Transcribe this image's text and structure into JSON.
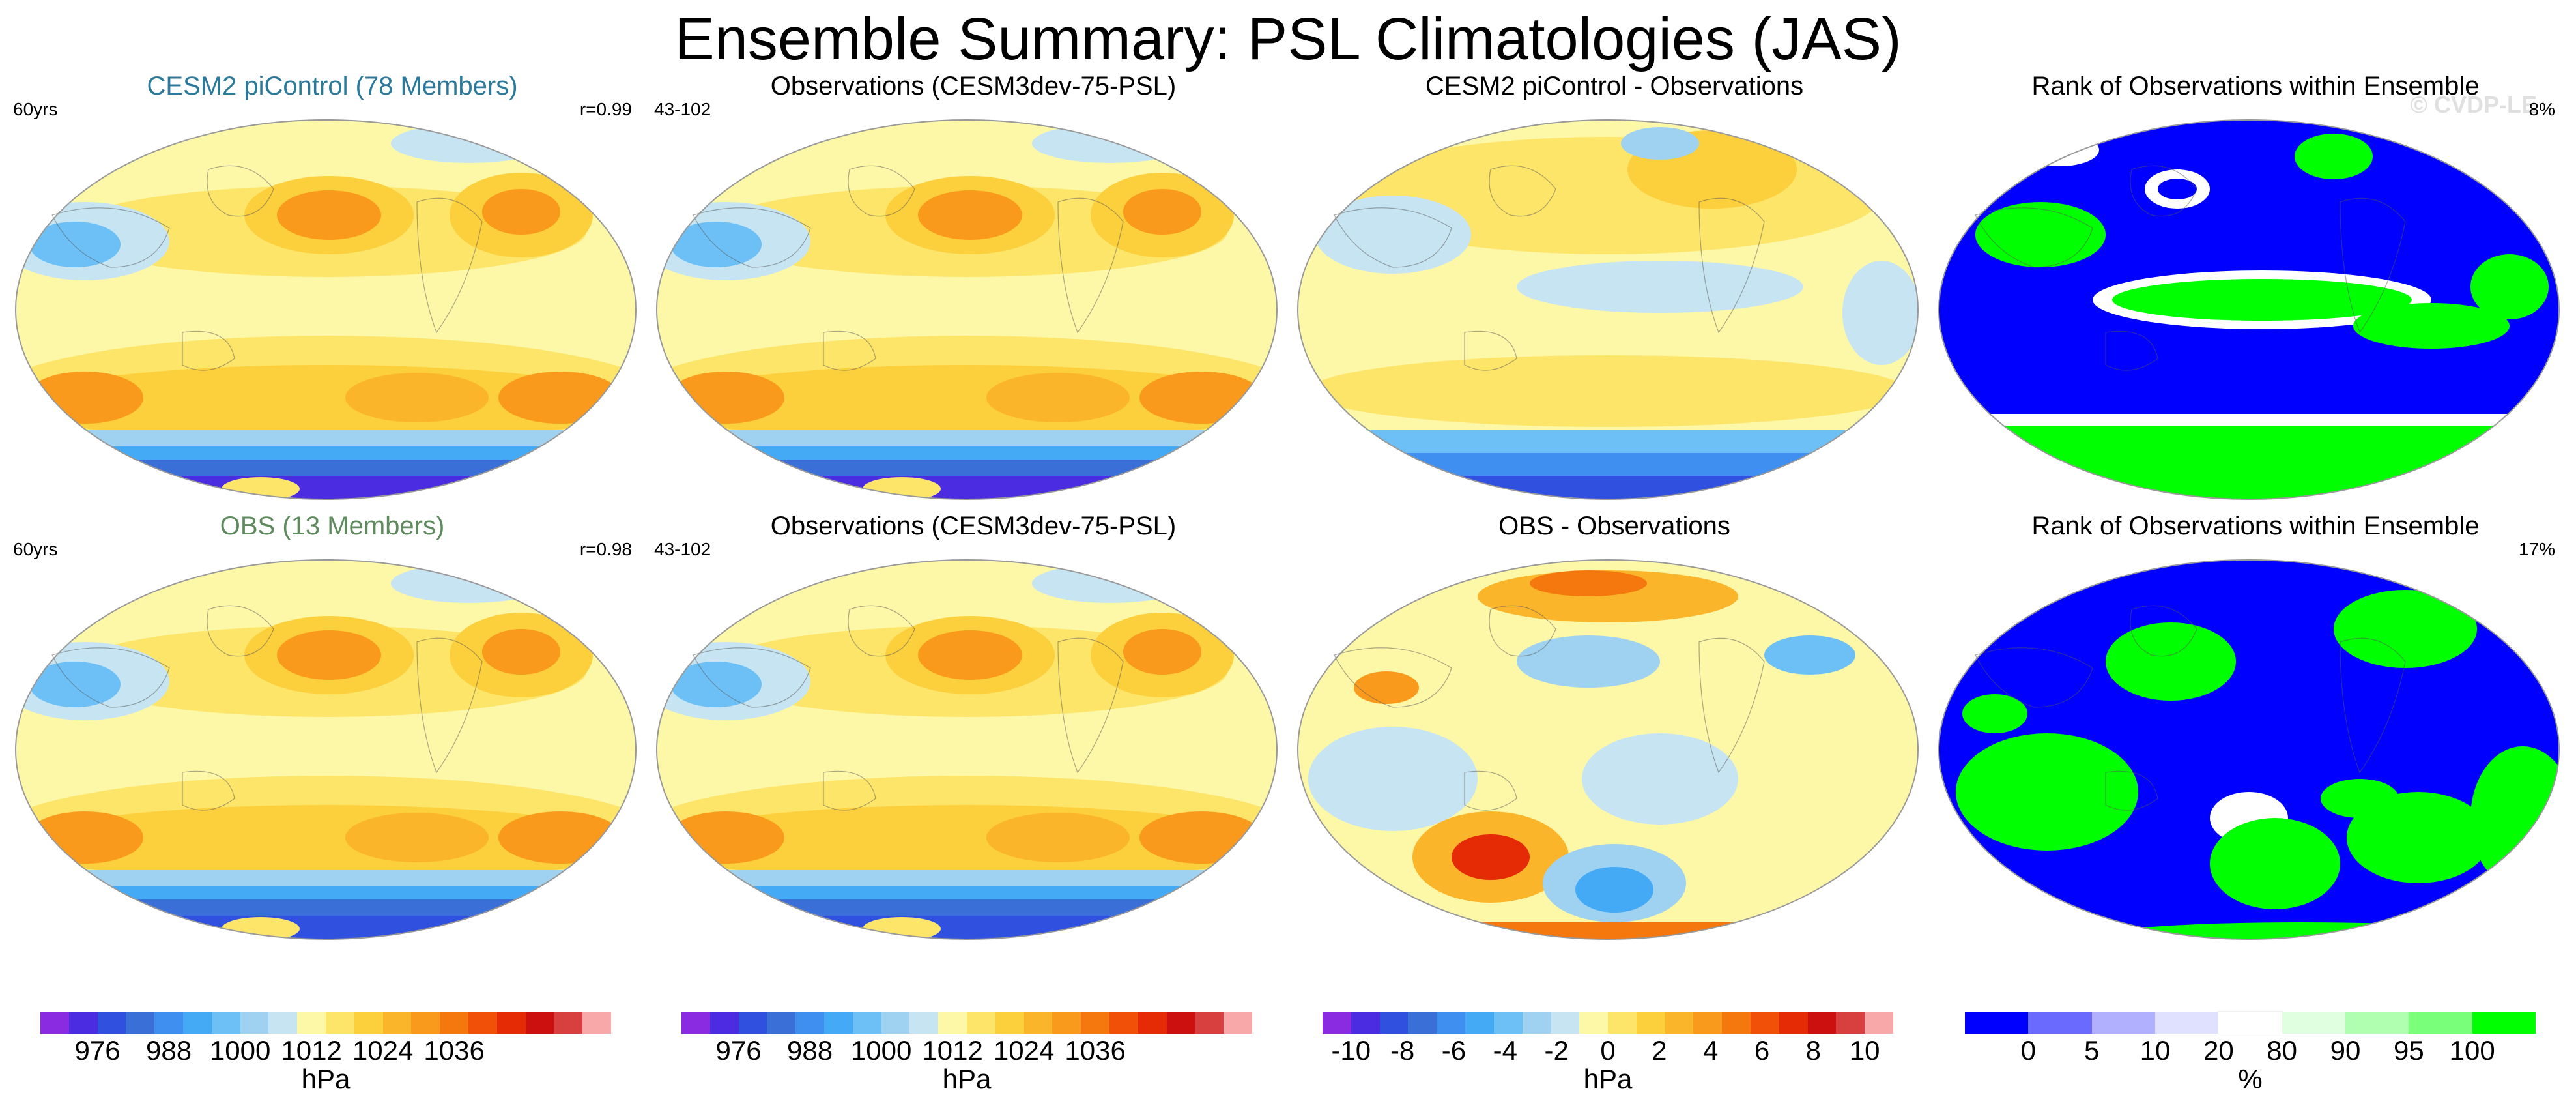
{
  "title": "Ensemble Summary: PSL Climatologies (JAS)",
  "watermark": "© CVDP-LE",
  "panels": [
    {
      "title": "CESM2 piControl (78 Members)",
      "title_color": "#2b7a9c",
      "left": "60yrs",
      "right": "r=0.99",
      "type": "clim"
    },
    {
      "title": "Observations (CESM3dev-75-PSL)",
      "title_color": "#000000",
      "left": "43-102",
      "right": "",
      "type": "clim"
    },
    {
      "title": "CESM2 piControl - Observations",
      "title_color": "#000000",
      "left": "",
      "right": "",
      "type": "diff"
    },
    {
      "title": "Rank of Observations within Ensemble",
      "title_color": "#000000",
      "left": "",
      "right": "8%",
      "type": "rank"
    },
    {
      "title": "OBS (13 Members)",
      "title_color": "#5e8a5e",
      "left": "60yrs",
      "right": "r=0.98",
      "type": "clim"
    },
    {
      "title": "Observations (CESM3dev-75-PSL)",
      "title_color": "#000000",
      "left": "43-102",
      "right": "",
      "type": "clim"
    },
    {
      "title": "OBS - Observations",
      "title_color": "#000000",
      "left": "",
      "right": "",
      "type": "diff2"
    },
    {
      "title": "Rank of Observations within Ensemble",
      "title_color": "#000000",
      "left": "",
      "right": "17%",
      "type": "rank2"
    }
  ],
  "colorbars": [
    {
      "unit": "hPa",
      "labels": [
        "976",
        "988",
        "1000",
        "1012",
        "1024",
        "1036"
      ],
      "colors": [
        "#8a2be2",
        "#4b2ce0",
        "#3050e0",
        "#3a6fd8",
        "#3f8ff0",
        "#45aaf5",
        "#6cc0f5",
        "#9ed2f0",
        "#c7e4f2",
        "#fdf7a8",
        "#fde56a",
        "#fccf3c",
        "#fbb52a",
        "#f99a1c",
        "#f5780f",
        "#f05008",
        "#e52a06",
        "#cc1010",
        "#d84040",
        "#f8a8a8"
      ],
      "label_idx": [
        1,
        3,
        5,
        7,
        9,
        11
      ]
    },
    {
      "unit": "hPa",
      "labels": [
        "976",
        "988",
        "1000",
        "1012",
        "1024",
        "1036"
      ],
      "colors": [
        "#8a2be2",
        "#4b2ce0",
        "#3050e0",
        "#3a6fd8",
        "#3f8ff0",
        "#45aaf5",
        "#6cc0f5",
        "#9ed2f0",
        "#c7e4f2",
        "#fdf7a8",
        "#fde56a",
        "#fccf3c",
        "#fbb52a",
        "#f99a1c",
        "#f5780f",
        "#f05008",
        "#e52a06",
        "#cc1010",
        "#d84040",
        "#f8a8a8"
      ],
      "label_idx": [
        1,
        3,
        5,
        7,
        9,
        11
      ]
    },
    {
      "unit": "hPa",
      "labels": [
        "-10",
        "-8",
        "-6",
        "-4",
        "-2",
        "0",
        "2",
        "4",
        "6",
        "8",
        "10"
      ],
      "colors": [
        "#8a2be2",
        "#4b2ce0",
        "#3050e0",
        "#3a6fd8",
        "#3f8ff0",
        "#45aaf5",
        "#6cc0f5",
        "#9ed2f0",
        "#c7e4f2",
        "#fdf7a8",
        "#fde56a",
        "#fccf3c",
        "#fbb52a",
        "#f99a1c",
        "#f5780f",
        "#f05008",
        "#e52a06",
        "#cc1010",
        "#d84040",
        "#f8a8a8"
      ],
      "label_idx": [
        1,
        3,
        5,
        7,
        9,
        11,
        13,
        15,
        17,
        19,
        21
      ]
    },
    {
      "unit": "%",
      "labels": [
        "0",
        "5",
        "10",
        "20",
        "80",
        "90",
        "95",
        "100"
      ],
      "colors": [
        "#0000ff",
        "#6a6aff",
        "#b0b0ff",
        "#e0e0ff",
        "#ffffff",
        "#e0ffe0",
        "#b0ffb0",
        "#7aff7a",
        "#00ff00"
      ],
      "label_idx": [
        1,
        2,
        3,
        4,
        5,
        6,
        7,
        8
      ]
    }
  ],
  "chart_data": {
    "type": "heatmap",
    "title": "Ensemble Summary: PSL Climatologies (JAS)",
    "panels": [
      {
        "name": "CESM2 piControl (78 Members)",
        "period": "60yrs",
        "pattern_correlation": 0.99,
        "units": "hPa"
      },
      {
        "name": "Observations (CESM3dev-75-PSL)",
        "period": "43-102",
        "units": "hPa"
      },
      {
        "name": "CESM2 piControl - Observations",
        "units": "hPa"
      },
      {
        "name": "Rank of Observations within Ensemble",
        "global_percent": 8,
        "units": "%"
      },
      {
        "name": "OBS (13 Members)",
        "period": "60yrs",
        "pattern_correlation": 0.98,
        "units": "hPa"
      },
      {
        "name": "Observations (CESM3dev-75-PSL)",
        "period": "43-102",
        "units": "hPa"
      },
      {
        "name": "OBS - Observations",
        "units": "hPa"
      },
      {
        "name": "Rank of Observations within Ensemble",
        "global_percent": 17,
        "units": "%"
      }
    ],
    "colorbar_psl_ticks": [
      976,
      988,
      1000,
      1012,
      1024,
      1036
    ],
    "colorbar_diff_ticks": [
      -10,
      -8,
      -6,
      -4,
      -2,
      0,
      2,
      4,
      6,
      8,
      10
    ],
    "colorbar_rank_ticks": [
      0,
      5,
      10,
      20,
      80,
      90,
      95,
      100
    ]
  }
}
